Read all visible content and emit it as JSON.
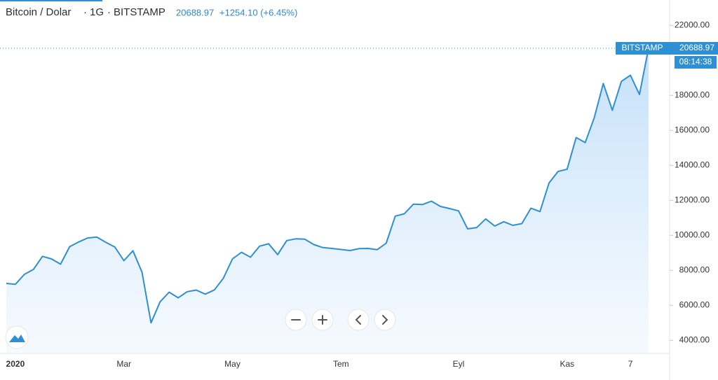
{
  "chart_data": {
    "type": "area",
    "symbol": "Bitcoin / Dolar",
    "interval": "1G",
    "exchange": "BITSTAMP",
    "last_price": 20688.97,
    "change": "+1254.10 (+6.45%)",
    "bar_countdown": "08:14:38",
    "color": "#2e8fd3",
    "categories": [
      null,
      "2020",
      null,
      null,
      null,
      null,
      null,
      null,
      null,
      null,
      null,
      null,
      null,
      "Mar",
      null,
      null,
      null,
      null,
      null,
      null,
      null,
      null,
      null,
      null,
      null,
      "May",
      null,
      null,
      null,
      null,
      null,
      null,
      null,
      null,
      null,
      null,
      null,
      "Tem",
      null,
      null,
      null,
      null,
      null,
      null,
      null,
      null,
      null,
      null,
      null,
      null,
      "Eyl",
      null,
      null,
      null,
      null,
      null,
      null,
      null,
      null,
      null,
      null,
      null,
      "Kas",
      null,
      null,
      null,
      null,
      null,
      null,
      "7",
      null,
      null
    ],
    "values": [
      7250,
      7200,
      7770,
      8050,
      8800,
      8650,
      8350,
      9350,
      9620,
      9850,
      9900,
      9600,
      9330,
      8550,
      9120,
      7900,
      5000,
      6200,
      6750,
      6430,
      6780,
      6870,
      6640,
      6880,
      7550,
      8650,
      9030,
      8750,
      9380,
      9520,
      8900,
      9700,
      9800,
      9780,
      9470,
      9300,
      9250,
      9190,
      9130,
      9240,
      9250,
      9180,
      9550,
      11100,
      11230,
      11780,
      11760,
      11950,
      11650,
      11530,
      11400,
      10370,
      10440,
      10940,
      10530,
      10780,
      10570,
      10670,
      11550,
      11360,
      12990,
      13650,
      13780,
      15590,
      15300,
      16720,
      18680,
      17150,
      18800,
      19150,
      18050,
      20688.97
    ],
    "ylim": [
      3250,
      23250
    ],
    "yticks": [
      {
        "value": 4000,
        "label": "4000.00"
      },
      {
        "value": 6000,
        "label": "6000.00"
      },
      {
        "value": 8000,
        "label": "8000.00"
      },
      {
        "value": 10000,
        "label": "10000.00"
      },
      {
        "value": 12000,
        "label": "12000.00"
      },
      {
        "value": 14000,
        "label": "14000.00"
      },
      {
        "value": 16000,
        "label": "16000.00"
      },
      {
        "value": 18000,
        "label": "18000.00"
      },
      {
        "value": 22000,
        "label": "22000.00"
      }
    ]
  }
}
